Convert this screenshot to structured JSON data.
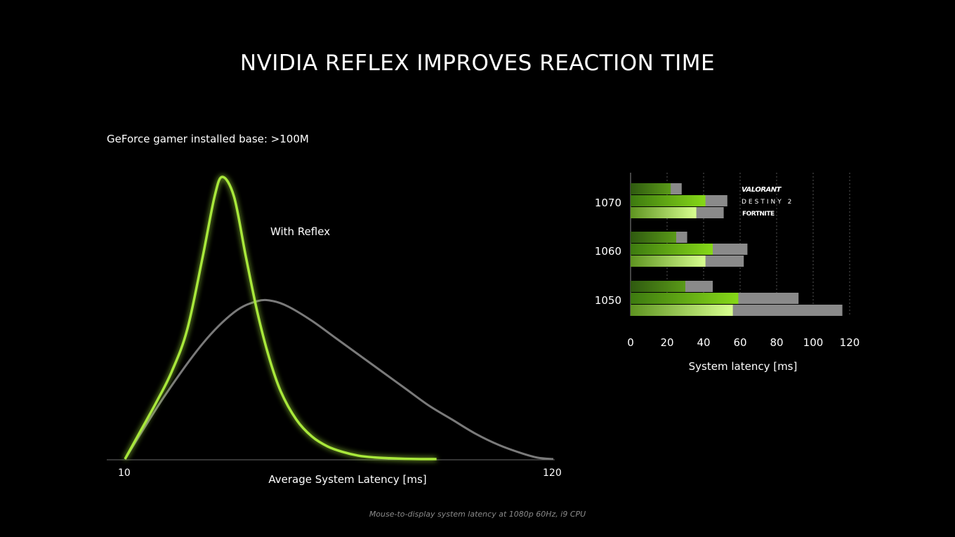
{
  "title": "NVIDIA REFLEX IMPROVES REACTION TIME",
  "subtitle": "GeForce gamer installed base: >100M",
  "footnote": "Mouse-to-display system latency at 1080p 60Hz, i9 CPU",
  "colors": {
    "reflex": "#a8e83a",
    "baseline": "#7a7a7a",
    "background": "#000000"
  },
  "chart_data": [
    {
      "type": "line",
      "xlabel": "Average System Latency [ms]",
      "xlim": [
        10,
        120
      ],
      "x_tick_labels": [
        "10",
        "120"
      ],
      "series": [
        {
          "name": "With Reflex",
          "x": [
            10,
            14,
            18,
            22,
            26,
            30,
            33,
            35,
            38,
            41,
            44,
            47,
            50,
            54,
            58,
            62,
            66,
            70,
            74,
            78,
            82,
            86,
            90
          ],
          "y": [
            0.0,
            0.1,
            0.2,
            0.31,
            0.46,
            0.72,
            0.93,
            1.0,
            0.93,
            0.72,
            0.52,
            0.36,
            0.24,
            0.14,
            0.08,
            0.045,
            0.025,
            0.012,
            0.006,
            0.003,
            0.001,
            0.0,
            0.0
          ]
        },
        {
          "name": "",
          "x": [
            10,
            20,
            30,
            38,
            44,
            48,
            52,
            58,
            64,
            70,
            76,
            82,
            88,
            94,
            100,
            106,
            112,
            116,
            120
          ],
          "y": [
            0.0,
            0.22,
            0.41,
            0.52,
            0.56,
            0.56,
            0.54,
            0.49,
            0.43,
            0.37,
            0.31,
            0.25,
            0.19,
            0.14,
            0.09,
            0.05,
            0.02,
            0.005,
            0.0
          ]
        }
      ]
    },
    {
      "type": "bar",
      "orientation": "horizontal",
      "stacked": true,
      "xlabel": "System latency [ms]",
      "xlim": [
        0,
        120
      ],
      "x_ticks": [
        0,
        20,
        40,
        60,
        80,
        100,
        120
      ],
      "groups": [
        "1070",
        "1060",
        "1050"
      ],
      "games": [
        "VALORANT",
        "DESTINY 2",
        "FORTNITE"
      ],
      "with_reflex": [
        [
          22,
          41,
          36
        ],
        [
          25,
          45,
          41
        ],
        [
          30,
          59,
          56
        ]
      ],
      "without_reflex": [
        [
          28,
          53,
          51
        ],
        [
          31,
          64,
          62
        ],
        [
          45,
          92,
          116
        ]
      ]
    }
  ]
}
